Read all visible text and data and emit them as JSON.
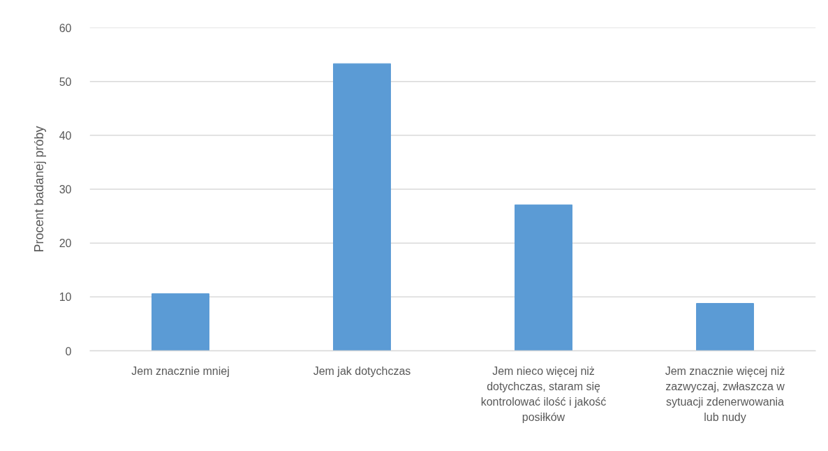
{
  "chart_data": {
    "type": "bar",
    "ylabel": "Procent badanej próby",
    "categories": [
      "Jem znacznie mniej",
      "Jem jak dotychczas",
      "Jem nieco więcej niż dotychczas, staram się kontrolować ilość i jakość posiłków",
      "Jem znacznie więcej niż zazwyczaj, zwłaszcza w sytuacji zdenerwowania lub nudy"
    ],
    "values": [
      10.6,
      53.3,
      27.1,
      8.8
    ],
    "color": "#5b9bd5",
    "ylim": [
      0,
      60
    ],
    "yticks": [
      0,
      10,
      20,
      30,
      40,
      50,
      60
    ],
    "grid": "y"
  }
}
